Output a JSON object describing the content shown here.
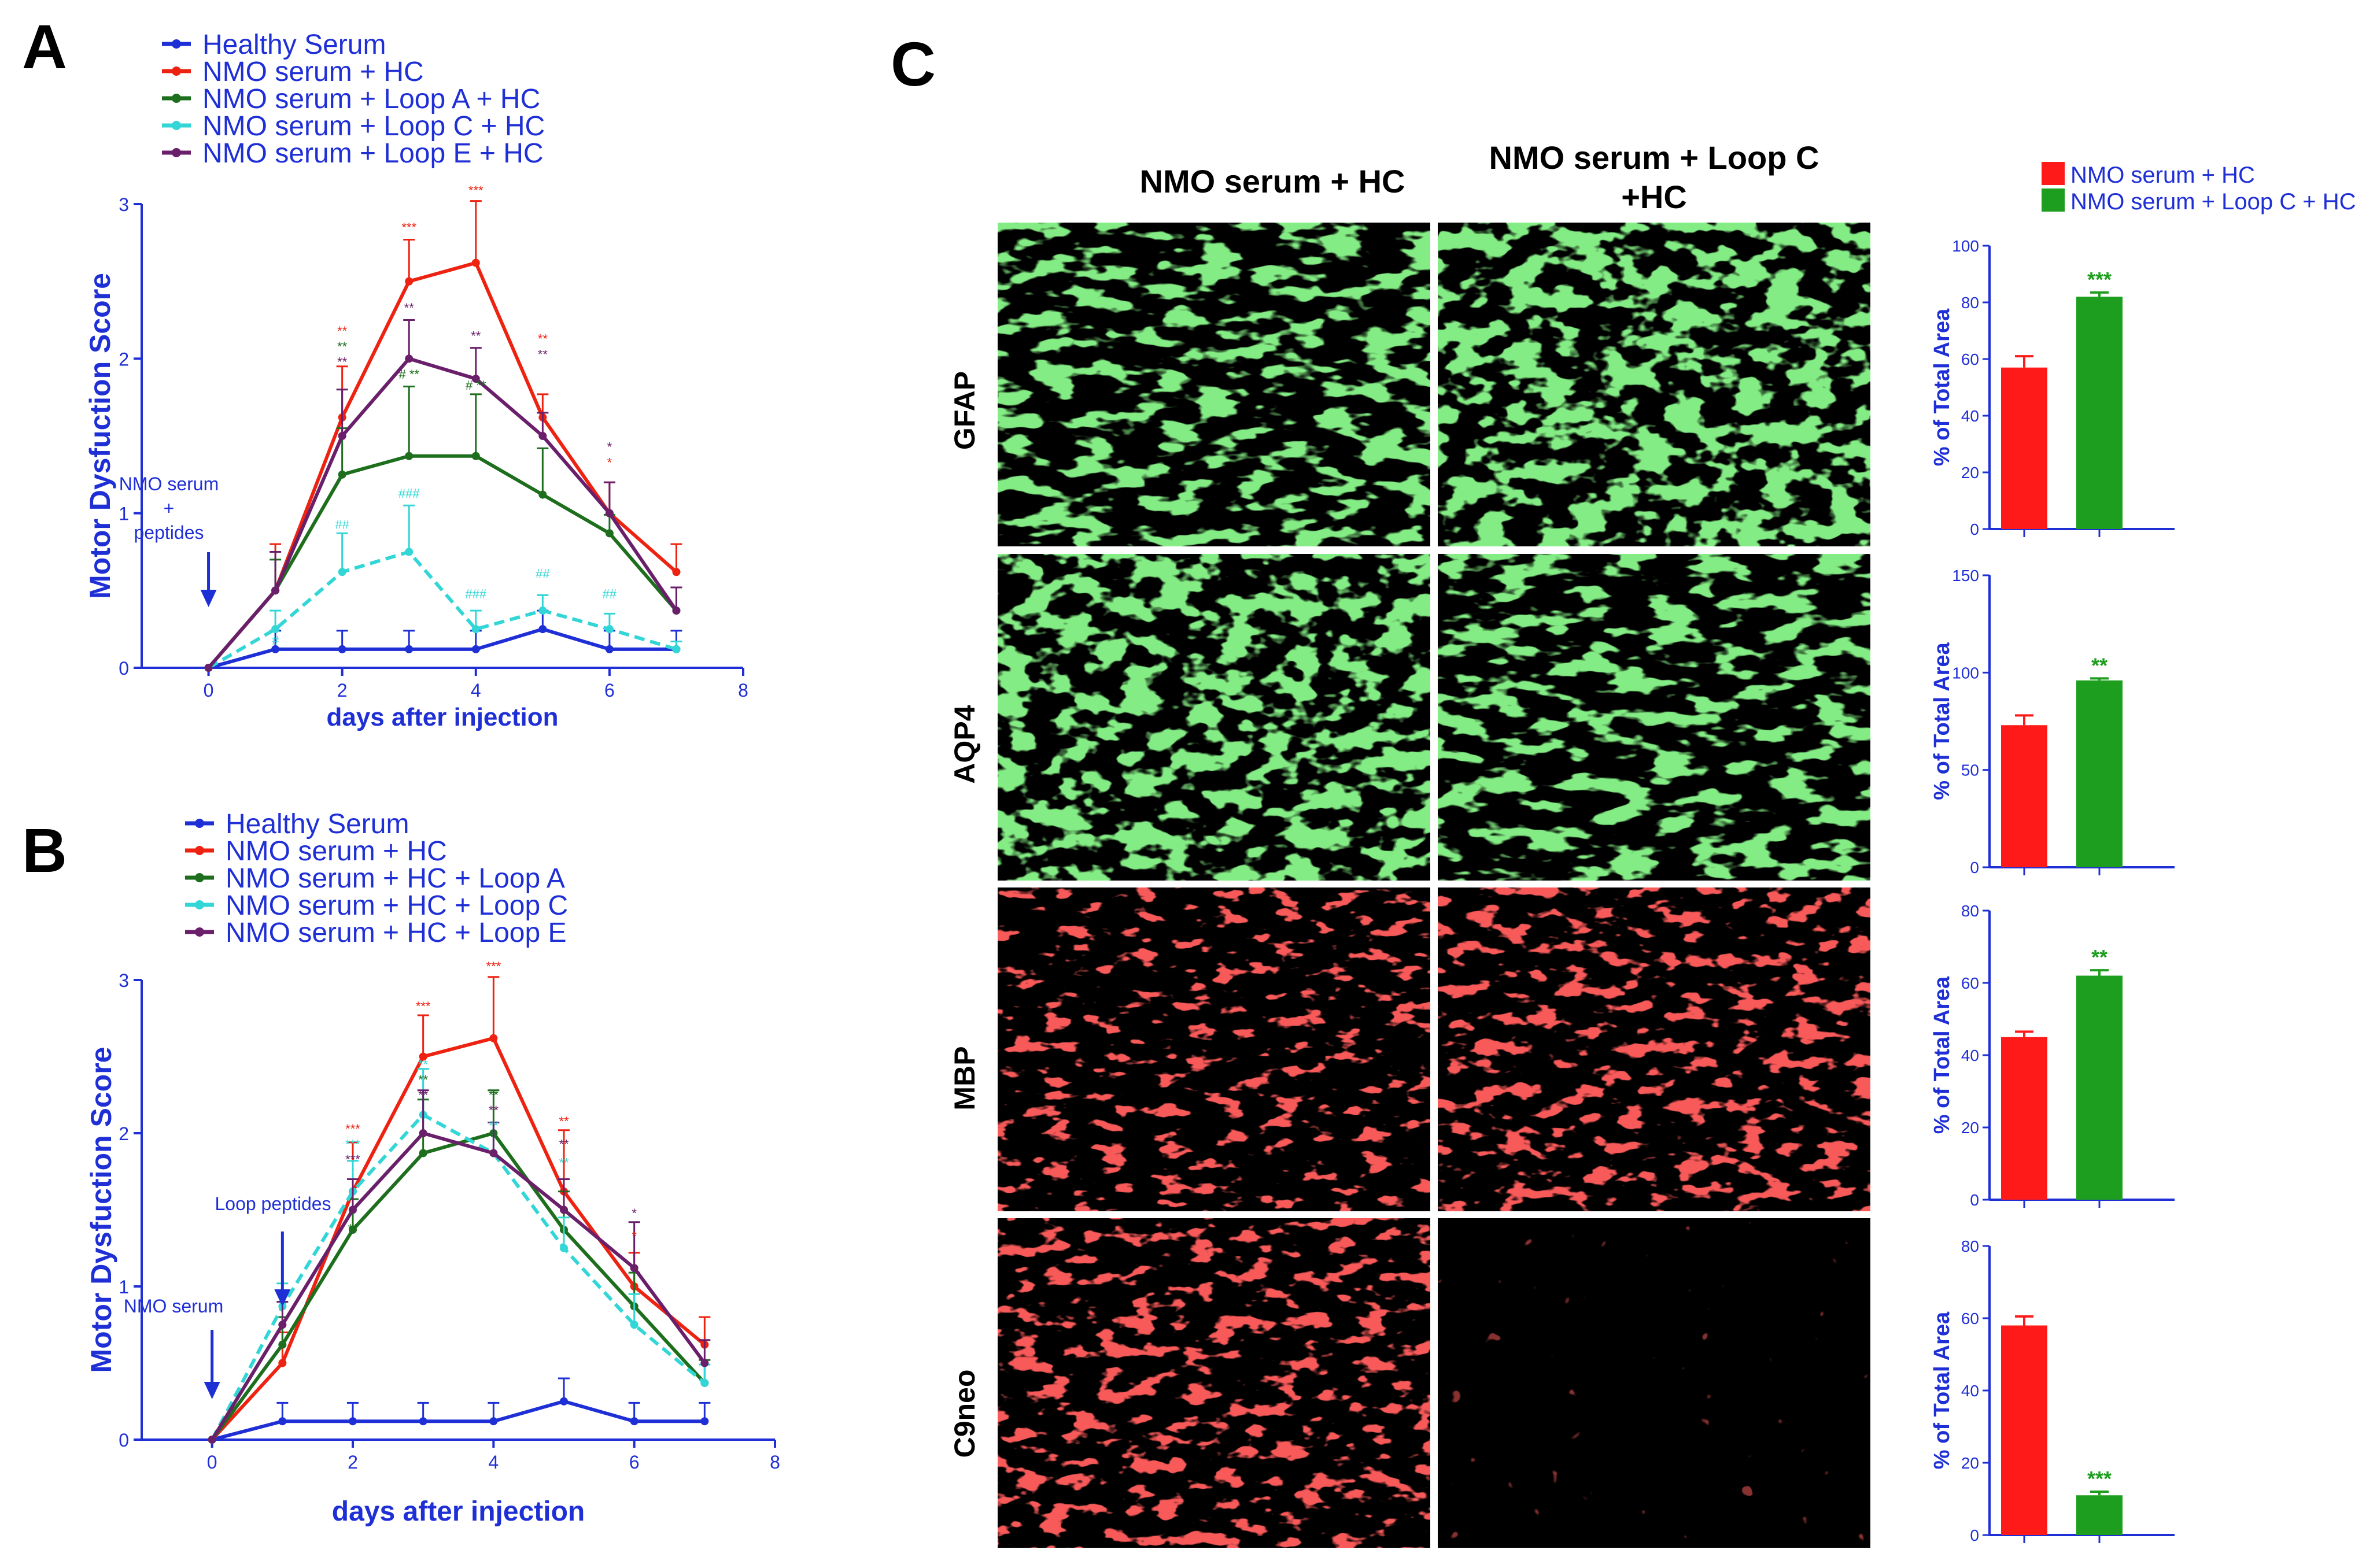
{
  "colors": {
    "axis": "#1f2fd6",
    "healthy": "#1f2fd6",
    "nmo_hc": "#ee2211",
    "loop_a": "#1d6e1d",
    "loop_c": "#33d6d6",
    "loop_e": "#6a1f6a",
    "bar_red": "#ff1a1a",
    "bar_green": "#1e9e1e",
    "micro_green": "#3bd63b",
    "micro_red": "#f01c1c"
  },
  "panels": {
    "a": "A",
    "b": "B",
    "c": "C"
  },
  "chart_data": [
    {
      "panel": "A",
      "type": "line",
      "xlabel": "days after injection",
      "ylabel": "Motor  Dysfuction Score",
      "xlim": [
        -1,
        8
      ],
      "ylim": [
        0,
        3
      ],
      "xticks": [
        "0",
        "2",
        "4",
        "6",
        "8"
      ],
      "yticks": [
        "0",
        "1",
        "2",
        "3"
      ],
      "x": [
        0,
        1,
        2,
        3,
        4,
        5,
        6,
        7
      ],
      "legend_position": "top-left",
      "annotations": [
        {
          "text": "NMO serum",
          "text2": "+",
          "text3": "peptides",
          "x": 0
        }
      ],
      "series": [
        {
          "name": "Healthy Serum",
          "color_key": "healthy",
          "values": [
            0,
            0.12,
            0.12,
            0.12,
            0.12,
            0.25,
            0.12,
            0.12
          ],
          "err": [
            0,
            0.12,
            0.12,
            0.12,
            0.12,
            0.12,
            0.12,
            0.12
          ]
        },
        {
          "name": "NMO serum + HC",
          "color_key": "nmo_hc",
          "values": [
            0,
            0.5,
            1.62,
            2.5,
            2.62,
            1.62,
            1.0,
            0.62
          ],
          "err": [
            0,
            0.3,
            0.33,
            0.27,
            0.4,
            0.15,
            0.2,
            0.18
          ]
        },
        {
          "name": "NMO serum + Loop A + HC",
          "color_key": "loop_a",
          "values": [
            0,
            0.5,
            1.25,
            1.37,
            1.37,
            1.12,
            0.87,
            0.37
          ],
          "err": [
            0,
            0.2,
            0.3,
            0.45,
            0.4,
            0.3,
            0.12,
            0.15
          ]
        },
        {
          "name": "NMO serum + Loop C + HC",
          "color_key": "loop_c",
          "values": [
            0,
            0.25,
            0.62,
            0.75,
            0.25,
            0.37,
            0.25,
            0.12
          ],
          "err": [
            0,
            0.12,
            0.25,
            0.3,
            0.12,
            0.1,
            0.1,
            0.05
          ]
        },
        {
          "name": "NMO serum + Loop E + HC",
          "color_key": "loop_e",
          "values": [
            0,
            0.5,
            1.5,
            2.0,
            1.87,
            1.5,
            1.0,
            0.37
          ],
          "err": [
            0,
            0.25,
            0.3,
            0.25,
            0.2,
            0.15,
            0.2,
            0.15
          ]
        }
      ],
      "marks": [
        {
          "x": 1,
          "y": 0.15,
          "text": "#",
          "color_key": "loop_c"
        },
        {
          "x": 2,
          "y": 2.15,
          "text": "**",
          "color_key": "nmo_hc"
        },
        {
          "x": 2,
          "y": 2.05,
          "text": "**",
          "color_key": "loop_a"
        },
        {
          "x": 2,
          "y": 1.95,
          "text": "**",
          "color_key": "loop_e"
        },
        {
          "x": 2,
          "y": 0.9,
          "text": "##",
          "color_key": "loop_c"
        },
        {
          "x": 3,
          "y": 2.82,
          "text": "***",
          "color_key": "nmo_hc"
        },
        {
          "x": 3,
          "y": 2.3,
          "text": "**",
          "color_key": "loop_e"
        },
        {
          "x": 3,
          "y": 1.87,
          "text": "# **",
          "color_key": "loop_a"
        },
        {
          "x": 3,
          "y": 1.1,
          "text": "###",
          "color_key": "loop_c"
        },
        {
          "x": 4,
          "y": 3.06,
          "text": "***",
          "color_key": "nmo_hc"
        },
        {
          "x": 4,
          "y": 2.12,
          "text": "**",
          "color_key": "loop_e"
        },
        {
          "x": 4,
          "y": 1.8,
          "text": "# **",
          "color_key": "loop_a"
        },
        {
          "x": 4,
          "y": 0.45,
          "text": "###",
          "color_key": "loop_c"
        },
        {
          "x": 5,
          "y": 2.1,
          "text": "**",
          "color_key": "nmo_hc"
        },
        {
          "x": 5,
          "y": 2.0,
          "text": "**",
          "color_key": "loop_e"
        },
        {
          "x": 5,
          "y": 0.58,
          "text": "##",
          "color_key": "loop_c"
        },
        {
          "x": 6,
          "y": 1.4,
          "text": "*",
          "color_key": "loop_e"
        },
        {
          "x": 6,
          "y": 1.3,
          "text": "*",
          "color_key": "nmo_hc"
        },
        {
          "x": 6,
          "y": 0.45,
          "text": "##",
          "color_key": "loop_c"
        }
      ]
    },
    {
      "panel": "B",
      "type": "line",
      "xlabel": "days after injection",
      "ylabel": "Motor  Dysfuction Score",
      "xlim": [
        -1,
        8
      ],
      "ylim": [
        0,
        3
      ],
      "xticks": [
        "0",
        "2",
        "4",
        "6",
        "8"
      ],
      "yticks": [
        "0",
        "1",
        "2",
        "3"
      ],
      "x": [
        0,
        1,
        2,
        3,
        4,
        5,
        6,
        7
      ],
      "legend_position": "top-left",
      "annotations": [
        {
          "text": "NMO serum",
          "x": 0
        },
        {
          "text": "Loop peptides",
          "x": 1
        }
      ],
      "series": [
        {
          "name": "Healthy Serum",
          "color_key": "healthy",
          "values": [
            0,
            0.12,
            0.12,
            0.12,
            0.12,
            0.25,
            0.12,
            0.12
          ],
          "err": [
            0,
            0.12,
            0.12,
            0.12,
            0.12,
            0.15,
            0.12,
            0.12
          ]
        },
        {
          "name": "NMO serum + HC",
          "color_key": "nmo_hc",
          "values": [
            0,
            0.5,
            1.62,
            2.5,
            2.62,
            1.62,
            1.0,
            0.62
          ],
          "err": [
            0,
            0.2,
            0.32,
            0.27,
            0.4,
            0.4,
            0.22,
            0.18
          ]
        },
        {
          "name": "NMO serum + HC + Loop A",
          "color_key": "loop_a",
          "values": [
            0,
            0.62,
            1.37,
            1.87,
            2.0,
            1.37,
            0.87,
            0.37
          ],
          "err": [
            0,
            0.18,
            0.2,
            0.35,
            0.28,
            0.25,
            0.22,
            0.15
          ]
        },
        {
          "name": "NMO serum + HC + Loop C",
          "color_key": "loop_c",
          "values": [
            0,
            0.87,
            1.62,
            2.12,
            1.87,
            1.25,
            0.75,
            0.37
          ],
          "err": [
            0,
            0.15,
            0.2,
            0.3,
            0.2,
            0.2,
            0.2,
            0.12
          ]
        },
        {
          "name": "NMO serum + HC + Loop E",
          "color_key": "loop_e",
          "values": [
            0,
            0.75,
            1.5,
            2.0,
            1.87,
            1.5,
            1.12,
            0.5
          ],
          "err": [
            0,
            0.15,
            0.2,
            0.28,
            0.2,
            0.2,
            0.3,
            0.15
          ]
        }
      ],
      "marks": [
        {
          "x": 2,
          "y": 2.0,
          "text": "***",
          "color_key": "nmo_hc"
        },
        {
          "x": 2,
          "y": 1.9,
          "text": "***",
          "color_key": "loop_c"
        },
        {
          "x": 2,
          "y": 1.8,
          "text": "***",
          "color_key": "loop_e"
        },
        {
          "x": 2,
          "y": 1.35,
          "text": "**",
          "color_key": "loop_a"
        },
        {
          "x": 3,
          "y": 2.8,
          "text": "***",
          "color_key": "nmo_hc"
        },
        {
          "x": 3,
          "y": 2.42,
          "text": "**",
          "color_key": "loop_c"
        },
        {
          "x": 3,
          "y": 2.32,
          "text": "**",
          "color_key": "loop_a"
        },
        {
          "x": 3,
          "y": 2.22,
          "text": "**",
          "color_key": "loop_e"
        },
        {
          "x": 4,
          "y": 3.06,
          "text": "***",
          "color_key": "nmo_hc"
        },
        {
          "x": 4,
          "y": 2.22,
          "text": "**",
          "color_key": "loop_a"
        },
        {
          "x": 4,
          "y": 2.12,
          "text": "**",
          "color_key": "loop_e"
        },
        {
          "x": 4,
          "y": 2.02,
          "text": "**",
          "color_key": "loop_c"
        },
        {
          "x": 5,
          "y": 2.05,
          "text": "**",
          "color_key": "nmo_hc"
        },
        {
          "x": 5,
          "y": 1.9,
          "text": "**",
          "color_key": "loop_e"
        },
        {
          "x": 5,
          "y": 1.78,
          "text": "**",
          "color_key": "loop_c"
        },
        {
          "x": 6,
          "y": 1.45,
          "text": "*",
          "color_key": "loop_e"
        },
        {
          "x": 6,
          "y": 1.3,
          "text": "*",
          "color_key": "nmo_hc"
        }
      ]
    },
    {
      "panel": "C",
      "type": "bar",
      "ylabel": "% of Total Area",
      "legend_position": "top",
      "series_names": [
        "NMO serum + HC",
        "NMO serum + Loop C + HC"
      ],
      "column_titles": [
        "NMO serum + HC",
        "NMO serum + Loop C",
        "+HC"
      ],
      "rows": [
        {
          "label": "GFAP",
          "ylim": [
            0,
            100
          ],
          "yticks": [
            "0",
            "20",
            "40",
            "60",
            "80",
            "100"
          ],
          "values": [
            57,
            82
          ],
          "err": [
            4,
            1.5
          ],
          "sig": "***",
          "stain": "green"
        },
        {
          "label": "AQP4",
          "ylim": [
            0,
            150
          ],
          "yticks": [
            "0",
            "50",
            "100",
            "150"
          ],
          "values": [
            73,
            96
          ],
          "err": [
            5,
            1
          ],
          "sig": "**",
          "stain": "green"
        },
        {
          "label": "MBP",
          "ylim": [
            0,
            80
          ],
          "yticks": [
            "0",
            "20",
            "40",
            "60",
            "80"
          ],
          "values": [
            45,
            62
          ],
          "err": [
            1.5,
            1.5
          ],
          "sig": "**",
          "stain": "red"
        },
        {
          "label": "C9neo",
          "ylim": [
            0,
            80
          ],
          "yticks": [
            "0",
            "20",
            "40",
            "60",
            "80"
          ],
          "values": [
            58,
            11
          ],
          "err": [
            2.5,
            1
          ],
          "sig": "***",
          "stain": "red"
        }
      ]
    }
  ]
}
